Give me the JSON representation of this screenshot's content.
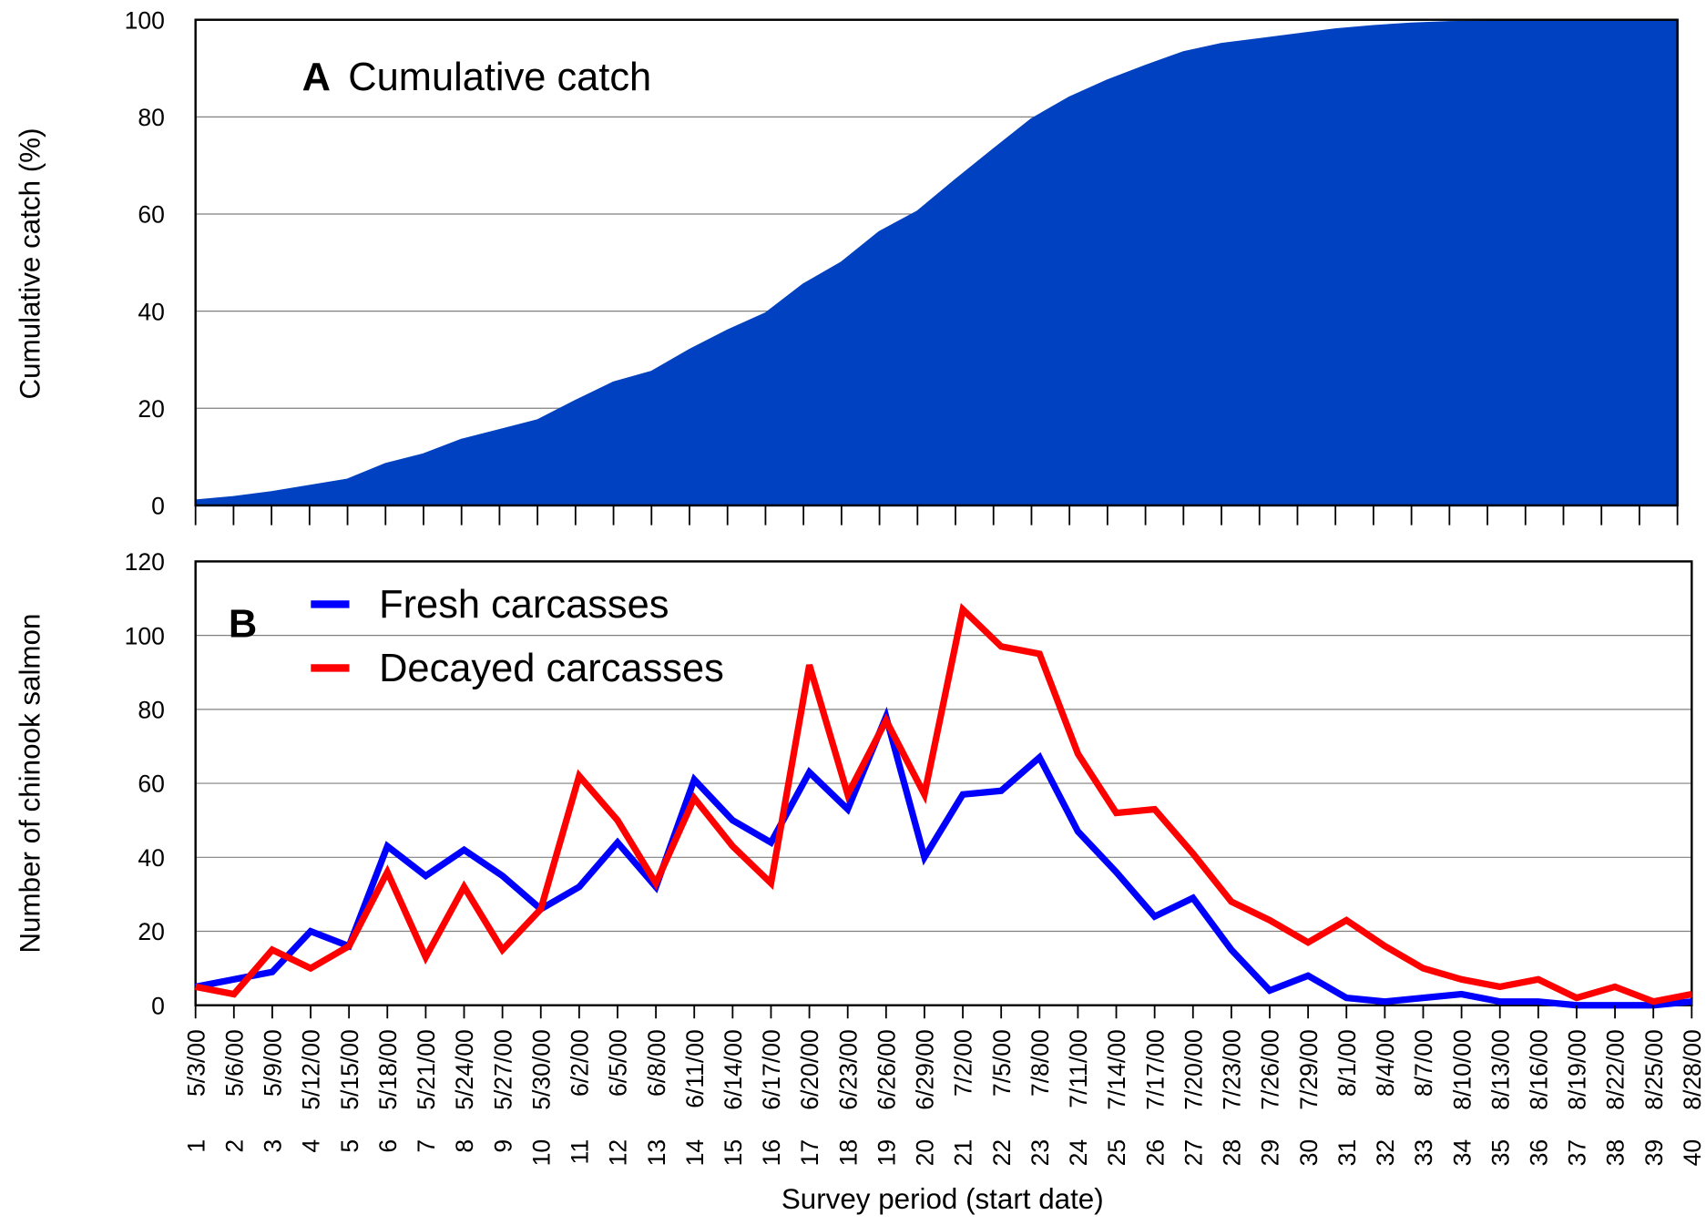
{
  "chart_data": [
    {
      "type": "area",
      "panel_label": "A",
      "title": "Cumulative catch",
      "ylabel": "Cumulative catch (%)",
      "color": "#0041c2",
      "values": [
        1,
        1.7,
        2.7,
        4,
        5.3,
        8.5,
        10.5,
        13.5,
        15.5,
        17.5,
        21.5,
        25.3,
        27.5,
        32,
        36,
        39.5,
        45.5,
        50,
        56.3,
        60.5,
        67,
        73.3,
        79.5,
        84,
        87.5,
        90.5,
        93.3,
        95,
        96,
        97,
        98,
        98.7,
        99.2,
        99.5,
        99.6,
        99.8,
        99.9,
        100,
        100,
        100
      ],
      "ylim": [
        0,
        100
      ],
      "yticks": [
        0,
        20,
        40,
        60,
        80,
        100
      ],
      "grid": true
    },
    {
      "type": "line",
      "panel_label": "B",
      "ylabel": "Number of chinook salmon",
      "xlabel": "Survey period (start date)",
      "periods": [
        1,
        2,
        3,
        4,
        5,
        6,
        7,
        8,
        9,
        10,
        11,
        12,
        13,
        14,
        15,
        16,
        17,
        18,
        19,
        20,
        21,
        22,
        23,
        24,
        25,
        26,
        27,
        28,
        29,
        30,
        31,
        32,
        33,
        34,
        35,
        36,
        37,
        38,
        39,
        40
      ],
      "categories": [
        "5/3/00",
        "5/6/00",
        "5/9/00",
        "5/12/00",
        "5/15/00",
        "5/18/00",
        "5/21/00",
        "5/24/00",
        "5/27/00",
        "5/30/00",
        "6/2/00",
        "6/5/00",
        "6/8/00",
        "6/11/00",
        "6/14/00",
        "6/17/00",
        "6/20/00",
        "6/23/00",
        "6/26/00",
        "6/29/00",
        "7/2/00",
        "7/5/00",
        "7/8/00",
        "7/11/00",
        "7/14/00",
        "7/17/00",
        "7/20/00",
        "7/23/00",
        "7/26/00",
        "7/29/00",
        "8/1/00",
        "8/4/00",
        "8/7/00",
        "8/10/00",
        "8/13/00",
        "8/16/00",
        "8/19/00",
        "8/22/00",
        "8/25/00",
        "8/28/00"
      ],
      "series": [
        {
          "name": "Fresh carcasses",
          "color": "#0000ff",
          "values": [
            5,
            7,
            9,
            20,
            16,
            43,
            35,
            42,
            35,
            26,
            32,
            44,
            32,
            61,
            50,
            44,
            63,
            53,
            78,
            40,
            57,
            58,
            67,
            47,
            36,
            24,
            29,
            15,
            4,
            8,
            2,
            1,
            2,
            3,
            1,
            1,
            0,
            0,
            0,
            1
          ]
        },
        {
          "name": "Decayed carcasses",
          "color": "#ff0000",
          "values": [
            5,
            3,
            15,
            10,
            16,
            36,
            13,
            32,
            15,
            26,
            62,
            50,
            33,
            56,
            43,
            33,
            92,
            57,
            77,
            57,
            107,
            97,
            95,
            68,
            52,
            53,
            41,
            28,
            23,
            17,
            23,
            16,
            10,
            7,
            5,
            7,
            2,
            5,
            1,
            3
          ]
        }
      ],
      "ylim": [
        0,
        120
      ],
      "yticks": [
        0,
        20,
        40,
        60,
        80,
        100,
        120
      ],
      "grid": true
    }
  ]
}
